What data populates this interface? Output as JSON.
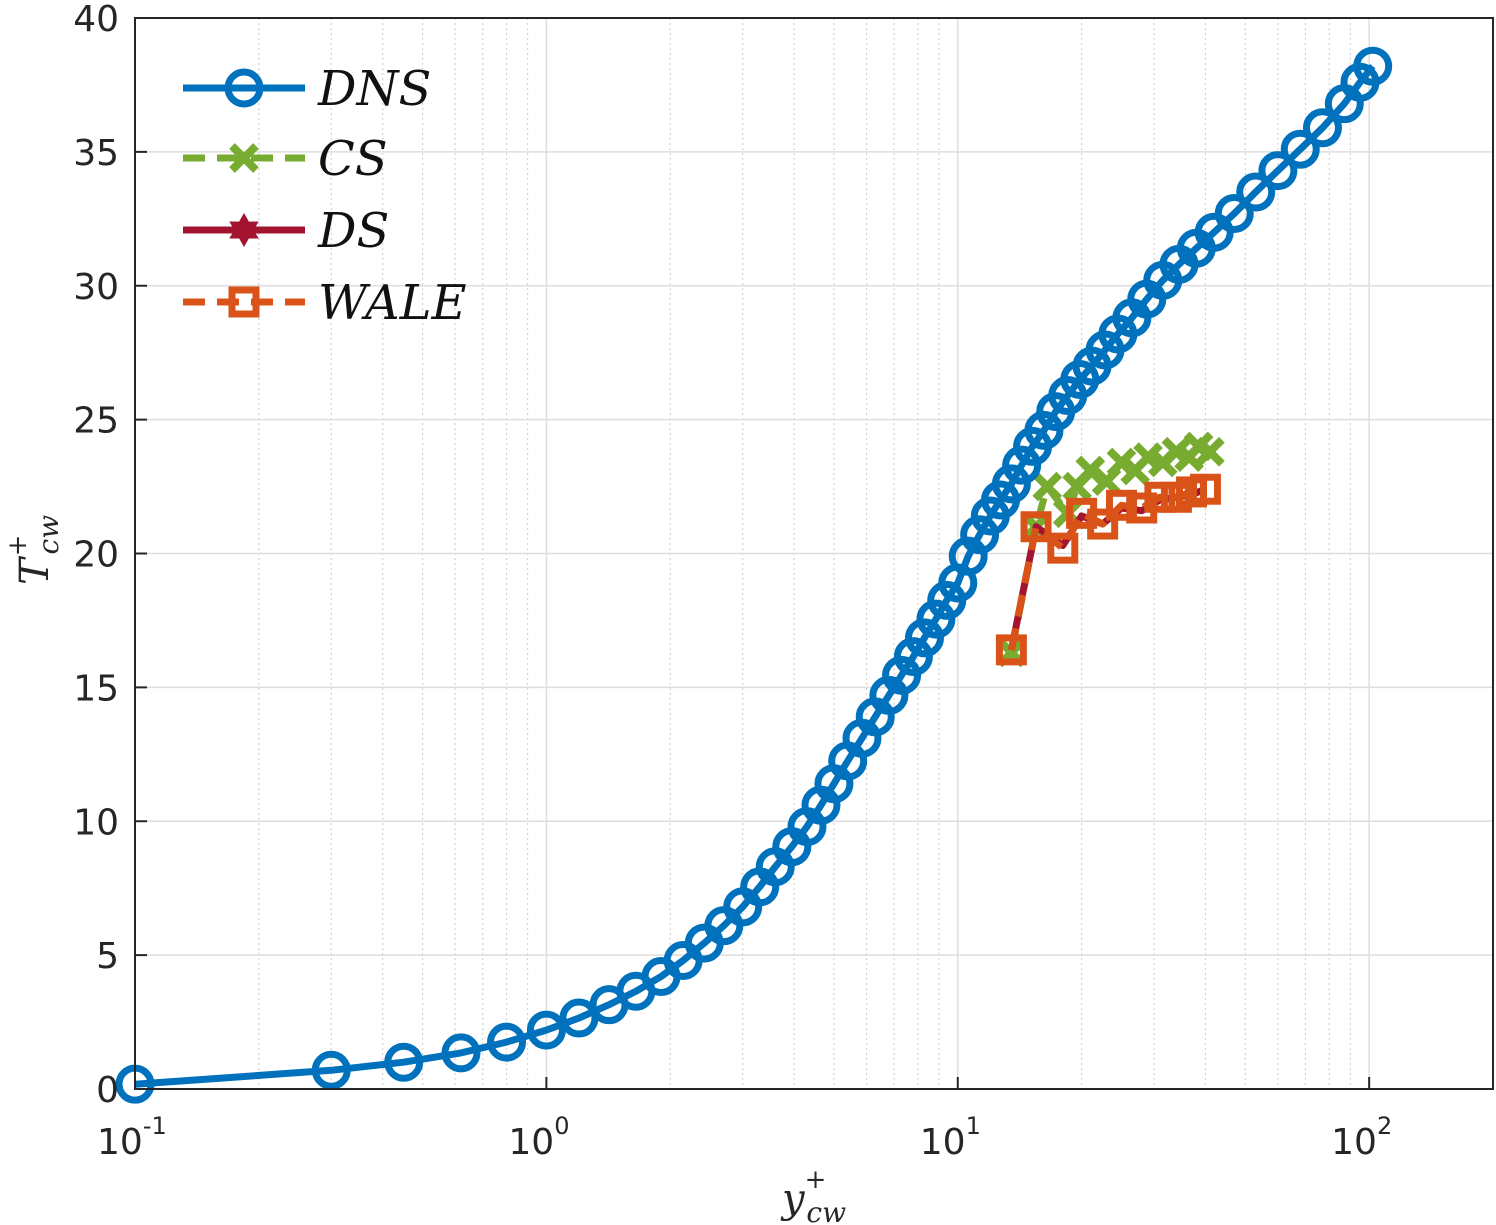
{
  "chart_data": {
    "type": "line",
    "x_scale": "log",
    "xlim": [
      0.1,
      200
    ],
    "ylim": [
      0,
      40
    ],
    "grid": true,
    "minor_grid_x": true,
    "legend_position": "top-left",
    "xlabel": {
      "base": "y",
      "sup": "+",
      "sub": "cw"
    },
    "ylabel": {
      "base": "T",
      "sup": "+",
      "sub": "cw"
    },
    "y_ticks": [
      0,
      5,
      10,
      15,
      20,
      25,
      30,
      35,
      40
    ],
    "x_ticks": [
      {
        "value": 0.1,
        "base": "10",
        "exp": "-1"
      },
      {
        "value": 1,
        "base": "10",
        "exp": "0"
      },
      {
        "value": 10,
        "base": "10",
        "exp": "1"
      },
      {
        "value": 100,
        "base": "10",
        "exp": "2"
      }
    ],
    "series": [
      {
        "name": "DNS",
        "label": "DNS",
        "color": "#0072BD",
        "dash": "solid",
        "marker": "circle",
        "x": [
          0.1,
          0.3,
          0.45,
          0.62,
          0.8,
          1.0,
          1.2,
          1.42,
          1.65,
          1.9,
          2.15,
          2.42,
          2.7,
          3.0,
          3.3,
          3.6,
          3.95,
          4.3,
          4.65,
          5.0,
          5.4,
          5.85,
          6.3,
          6.8,
          7.3,
          7.8,
          8.3,
          8.85,
          9.4,
          10.0,
          10.6,
          11.3,
          12.0,
          12.7,
          13.5,
          14.3,
          15.2,
          16.2,
          17.3,
          18.5,
          19.8,
          21.2,
          22.8,
          24.5,
          26.5,
          28.8,
          31.5,
          34.5,
          38.0,
          42.0,
          47.0,
          53.0,
          60.0,
          68.0,
          77.0,
          87.0,
          95.0,
          102.0
        ],
        "y": [
          0.18,
          0.7,
          1.0,
          1.35,
          1.75,
          2.2,
          2.65,
          3.15,
          3.65,
          4.2,
          4.8,
          5.45,
          6.1,
          6.8,
          7.55,
          8.3,
          9.05,
          9.8,
          10.6,
          11.4,
          12.25,
          13.1,
          13.9,
          14.7,
          15.45,
          16.15,
          16.85,
          17.55,
          18.25,
          18.9,
          19.9,
          20.7,
          21.4,
          22.0,
          22.6,
          23.3,
          24.0,
          24.6,
          25.3,
          25.9,
          26.5,
          27.0,
          27.6,
          28.2,
          28.8,
          29.5,
          30.2,
          30.8,
          31.4,
          32.0,
          32.7,
          33.5,
          34.3,
          35.1,
          35.9,
          36.8,
          37.6,
          38.2
        ]
      },
      {
        "name": "CS",
        "label": "CS",
        "color": "#77AC30",
        "dash": "dashed",
        "marker": "x",
        "x": [
          13.5,
          15.5,
          16.5,
          18.5,
          19.5,
          21.0,
          23.0,
          25.0,
          27.0,
          29.0,
          31.5,
          34.0,
          36.5,
          38.5,
          41.0
        ],
        "y": [
          16.3,
          21.0,
          22.5,
          21.5,
          22.5,
          23.1,
          22.7,
          23.4,
          23.1,
          23.6,
          23.4,
          23.8,
          23.6,
          24.0,
          23.8
        ]
      },
      {
        "name": "DS",
        "label": "DS",
        "color": "#A2142F",
        "dash": "solid",
        "marker": "hexagram",
        "x": [
          13.5,
          15.5,
          18.0,
          20.0,
          22.5,
          25.0,
          28.0,
          31.0,
          34.0,
          37.0,
          40.0
        ],
        "y": [
          16.4,
          21.0,
          20.3,
          21.4,
          21.1,
          21.7,
          21.6,
          22.0,
          22.1,
          22.2,
          22.4
        ]
      },
      {
        "name": "WALE",
        "label": "WALE",
        "color": "#D95319",
        "dash": "dashed",
        "marker": "square",
        "x": [
          13.5,
          15.5,
          18.0,
          20.0,
          22.5,
          25.0,
          28.0,
          31.0,
          34.0,
          37.0,
          40.0
        ],
        "y": [
          16.4,
          21.0,
          20.2,
          21.5,
          21.1,
          21.8,
          21.7,
          22.1,
          22.1,
          22.3,
          22.4
        ]
      }
    ]
  }
}
